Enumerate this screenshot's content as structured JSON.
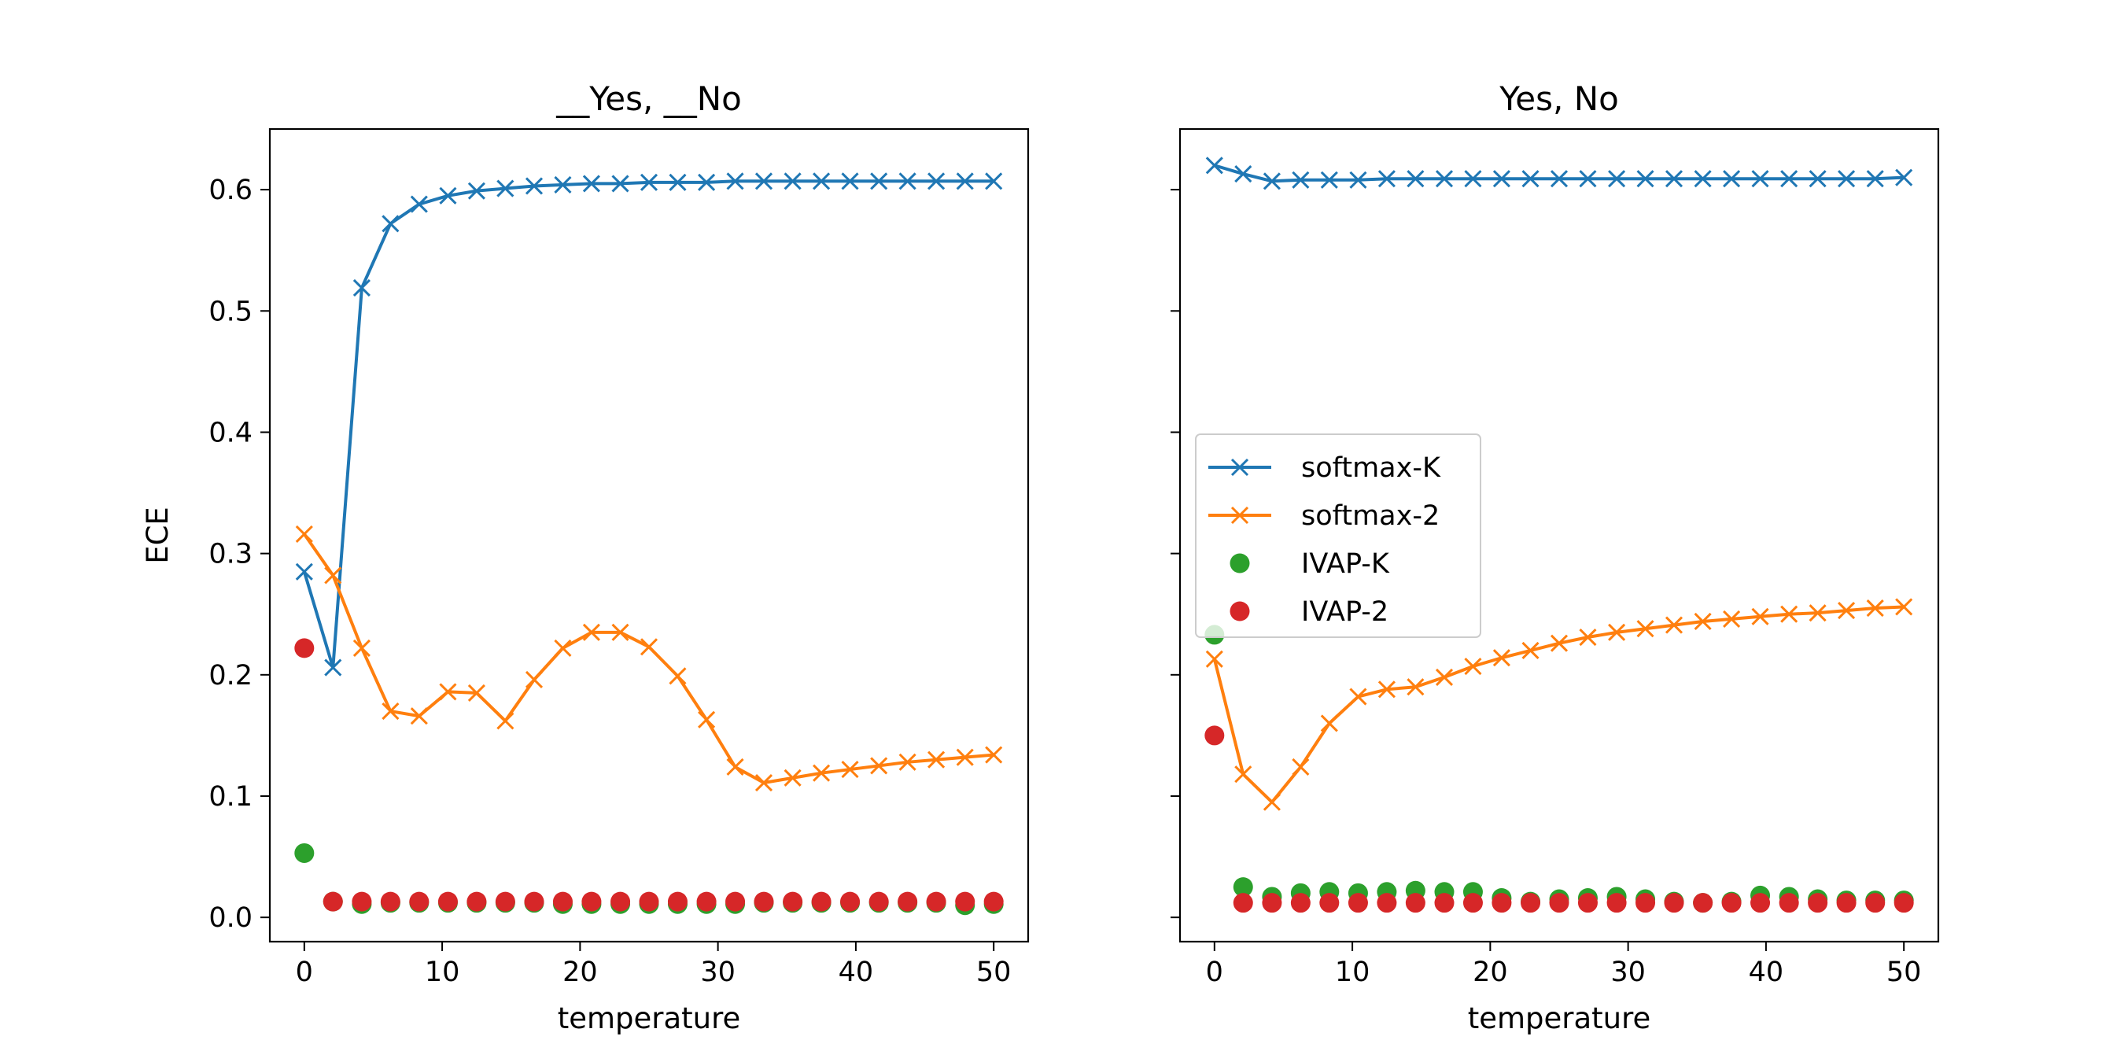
{
  "chart_data": [
    {
      "type": "line",
      "title": "__Yes, __No",
      "xlabel": "temperature",
      "ylabel": "ECE",
      "xlim": [
        -2.5,
        52.5
      ],
      "ylim": [
        -0.02,
        0.65
      ],
      "xticks": [
        0,
        10,
        20,
        30,
        40,
        50
      ],
      "xtick_labels": [
        "0",
        "10",
        "20",
        "30",
        "40",
        "50"
      ],
      "yticks": [
        0.0,
        0.1,
        0.2,
        0.3,
        0.4,
        0.5,
        0.6
      ],
      "ytick_labels": [
        "0.0",
        "0.1",
        "0.2",
        "0.3",
        "0.4",
        "0.5",
        "0.6"
      ],
      "show_yticklabels": true,
      "grid": false,
      "legend": null,
      "x": [
        0,
        2.08,
        4.17,
        6.25,
        8.33,
        10.42,
        12.5,
        14.58,
        16.67,
        18.75,
        20.83,
        22.92,
        25,
        27.08,
        29.17,
        31.25,
        33.33,
        35.42,
        37.5,
        39.58,
        41.67,
        43.75,
        45.83,
        47.92,
        50
      ],
      "series": [
        {
          "name": "softmax-K",
          "style": "line-x",
          "color": "#1f77b4",
          "values": [
            0.285,
            0.206,
            0.519,
            0.572,
            0.588,
            0.595,
            0.599,
            0.601,
            0.603,
            0.604,
            0.605,
            0.605,
            0.606,
            0.606,
            0.606,
            0.607,
            0.607,
            0.607,
            0.607,
            0.607,
            0.607,
            0.607,
            0.607,
            0.607,
            0.607
          ]
        },
        {
          "name": "softmax-2",
          "style": "line-x",
          "color": "#ff7f0e",
          "values": [
            0.316,
            0.282,
            0.222,
            0.17,
            0.166,
            0.186,
            0.185,
            0.162,
            0.196,
            0.222,
            0.235,
            0.235,
            0.223,
            0.199,
            0.163,
            0.124,
            0.111,
            0.115,
            0.119,
            0.122,
            0.125,
            0.128,
            0.13,
            0.132,
            0.134
          ]
        },
        {
          "name": "IVAP-K",
          "style": "dot",
          "color": "#2ca02c",
          "values": [
            0.053,
            0.013,
            0.011,
            0.012,
            0.012,
            0.012,
            0.012,
            0.012,
            0.012,
            0.011,
            0.011,
            0.011,
            0.011,
            0.011,
            0.011,
            0.011,
            0.012,
            0.012,
            0.012,
            0.012,
            0.012,
            0.012,
            0.012,
            0.01,
            0.011
          ]
        },
        {
          "name": "IVAP-2",
          "style": "dot",
          "color": "#d62728",
          "values": [
            0.222,
            0.013,
            0.013,
            0.013,
            0.013,
            0.013,
            0.013,
            0.013,
            0.013,
            0.013,
            0.013,
            0.013,
            0.013,
            0.013,
            0.013,
            0.013,
            0.013,
            0.013,
            0.013,
            0.013,
            0.013,
            0.013,
            0.013,
            0.013,
            0.013
          ]
        }
      ]
    },
    {
      "type": "line",
      "title": "Yes, No",
      "xlabel": "temperature",
      "ylabel": "",
      "xlim": [
        -2.5,
        52.5
      ],
      "ylim": [
        -0.02,
        0.65
      ],
      "xticks": [
        0,
        10,
        20,
        30,
        40,
        50
      ],
      "xtick_labels": [
        "0",
        "10",
        "20",
        "30",
        "40",
        "50"
      ],
      "yticks": [
        0.0,
        0.1,
        0.2,
        0.3,
        0.4,
        0.5,
        0.6
      ],
      "ytick_labels": [
        "",
        "",
        "",
        "",
        "",
        "",
        ""
      ],
      "show_yticklabels": false,
      "grid": false,
      "legend": "center-left",
      "x": [
        0,
        2.08,
        4.17,
        6.25,
        8.33,
        10.42,
        12.5,
        14.58,
        16.67,
        18.75,
        20.83,
        22.92,
        25,
        27.08,
        29.17,
        31.25,
        33.33,
        35.42,
        37.5,
        39.58,
        41.67,
        43.75,
        45.83,
        47.92,
        50
      ],
      "series": [
        {
          "name": "softmax-K",
          "style": "line-x",
          "color": "#1f77b4",
          "values": [
            0.62,
            0.613,
            0.607,
            0.608,
            0.608,
            0.608,
            0.609,
            0.609,
            0.609,
            0.609,
            0.609,
            0.609,
            0.609,
            0.609,
            0.609,
            0.609,
            0.609,
            0.609,
            0.609,
            0.609,
            0.609,
            0.609,
            0.609,
            0.609,
            0.61
          ]
        },
        {
          "name": "softmax-2",
          "style": "line-x",
          "color": "#ff7f0e",
          "values": [
            0.213,
            0.118,
            0.095,
            0.124,
            0.16,
            0.182,
            0.188,
            0.19,
            0.198,
            0.207,
            0.214,
            0.22,
            0.226,
            0.231,
            0.235,
            0.238,
            0.241,
            0.244,
            0.246,
            0.248,
            0.25,
            0.251,
            0.253,
            0.255,
            0.256
          ]
        },
        {
          "name": "IVAP-K",
          "style": "dot",
          "color": "#2ca02c",
          "values": [
            0.233,
            0.025,
            0.017,
            0.02,
            0.021,
            0.02,
            0.021,
            0.022,
            0.021,
            0.021,
            0.016,
            0.013,
            0.015,
            0.016,
            0.017,
            0.015,
            0.013,
            0.012,
            0.013,
            0.018,
            0.017,
            0.015,
            0.014,
            0.014,
            0.014
          ]
        },
        {
          "name": "IVAP-2",
          "style": "dot",
          "color": "#d62728",
          "values": [
            0.15,
            0.012,
            0.012,
            0.012,
            0.012,
            0.012,
            0.012,
            0.012,
            0.012,
            0.012,
            0.012,
            0.012,
            0.012,
            0.012,
            0.012,
            0.012,
            0.012,
            0.012,
            0.012,
            0.012,
            0.012,
            0.012,
            0.012,
            0.012,
            0.012
          ]
        }
      ]
    }
  ]
}
